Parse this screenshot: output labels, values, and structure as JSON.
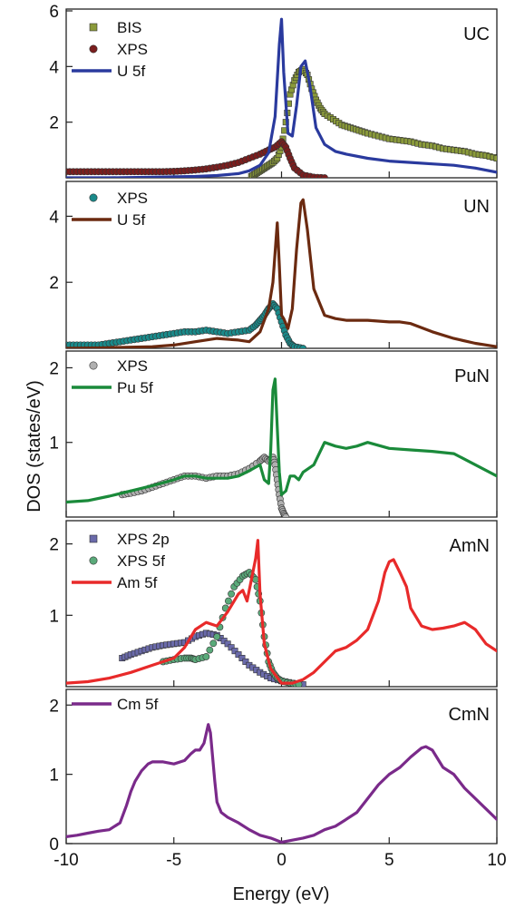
{
  "chart_data": [
    {
      "type": "line",
      "panel_label": "UC",
      "ylim": [
        0,
        6
      ],
      "yticks": [
        0,
        2,
        4,
        6
      ],
      "ytick_labels": [
        "",
        "2",
        "4",
        "6"
      ],
      "xlim": [
        -10,
        10
      ],
      "series": [
        {
          "name": "BIS",
          "kind": "scatter",
          "marker": "square",
          "color": "#8a9a3a",
          "x": [
            -1.4,
            -1.2,
            -1.0,
            -0.8,
            -0.6,
            -0.4,
            -0.2,
            0.0,
            0.2,
            0.4,
            0.6,
            0.8,
            1.0,
            1.2,
            1.4,
            1.6,
            1.8,
            2.0,
            2.4,
            2.8,
            3.2,
            3.6,
            4.0,
            4.5,
            5.0,
            5.5,
            6.0,
            6.5,
            7.0,
            7.5,
            8.0,
            8.5,
            9.0,
            9.5,
            10.0
          ],
          "y": [
            0.05,
            0.15,
            0.25,
            0.35,
            0.45,
            0.55,
            0.7,
            1.1,
            2.0,
            3.0,
            3.5,
            3.8,
            3.9,
            3.7,
            3.2,
            2.8,
            2.5,
            2.3,
            2.1,
            1.9,
            1.8,
            1.7,
            1.6,
            1.5,
            1.4,
            1.35,
            1.3,
            1.2,
            1.15,
            1.05,
            1.0,
            0.95,
            0.85,
            0.8,
            0.7
          ]
        },
        {
          "name": "XPS",
          "kind": "scatter",
          "marker": "circle",
          "color": "#7a1e1e",
          "x": [
            -10.0,
            -9.5,
            -9.0,
            -8.5,
            -8.0,
            -7.5,
            -7.0,
            -6.5,
            -6.0,
            -5.5,
            -5.0,
            -4.5,
            -4.0,
            -3.5,
            -3.0,
            -2.5,
            -2.0,
            -1.5,
            -1.0,
            -0.6,
            -0.3,
            0.0,
            0.2,
            0.4,
            0.6,
            1.0,
            1.5,
            2.0
          ],
          "y": [
            0.22,
            0.22,
            0.22,
            0.22,
            0.22,
            0.22,
            0.22,
            0.22,
            0.22,
            0.22,
            0.23,
            0.25,
            0.28,
            0.32,
            0.38,
            0.45,
            0.55,
            0.7,
            0.85,
            1.0,
            1.1,
            1.3,
            1.1,
            0.7,
            0.35,
            0.1,
            0.02,
            0.0
          ]
        },
        {
          "name": "U 5f",
          "kind": "line",
          "color": "#2a3a9e",
          "x": [
            -10.0,
            -8.0,
            -6.0,
            -4.0,
            -3.0,
            -2.0,
            -1.5,
            -1.0,
            -0.6,
            -0.3,
            -0.1,
            0.0,
            0.1,
            0.3,
            0.5,
            0.7,
            0.9,
            1.1,
            1.3,
            1.6,
            2.0,
            2.5,
            3.0,
            4.0,
            5.0,
            6.0,
            7.0,
            8.0,
            9.0,
            10.0
          ],
          "y": [
            0.0,
            0.0,
            0.02,
            0.05,
            0.08,
            0.15,
            0.25,
            0.45,
            0.9,
            2.2,
            4.8,
            5.7,
            3.8,
            1.6,
            1.5,
            2.6,
            4.0,
            4.2,
            3.4,
            1.8,
            1.2,
            0.95,
            0.85,
            0.7,
            0.6,
            0.55,
            0.5,
            0.45,
            0.35,
            0.2
          ]
        }
      ]
    },
    {
      "type": "line",
      "panel_label": "UN",
      "ylim": [
        0,
        5
      ],
      "yticks": [
        2,
        4
      ],
      "ytick_labels": [
        "2",
        "4"
      ],
      "xlim": [
        -10,
        10
      ],
      "series": [
        {
          "name": "XPS",
          "kind": "scatter",
          "marker": "circle",
          "color": "#1a8a8a",
          "x": [
            -10.0,
            -9.5,
            -9.0,
            -8.5,
            -8.0,
            -7.5,
            -7.0,
            -6.5,
            -6.0,
            -5.5,
            -5.0,
            -4.5,
            -4.0,
            -3.5,
            -3.0,
            -2.5,
            -2.0,
            -1.5,
            -1.2,
            -1.0,
            -0.8,
            -0.6,
            -0.4,
            -0.2,
            0.0,
            0.2,
            0.4,
            0.6,
            1.0
          ],
          "y": [
            0.1,
            0.1,
            0.1,
            0.1,
            0.15,
            0.2,
            0.25,
            0.3,
            0.35,
            0.4,
            0.45,
            0.5,
            0.5,
            0.55,
            0.5,
            0.45,
            0.5,
            0.55,
            0.7,
            0.85,
            1.0,
            1.2,
            1.35,
            1.2,
            0.8,
            0.4,
            0.15,
            0.05,
            0.0
          ]
        },
        {
          "name": "U 5f",
          "kind": "line",
          "color": "#6b2a10",
          "x": [
            -10.0,
            -8.0,
            -6.0,
            -5.0,
            -4.0,
            -3.0,
            -2.0,
            -1.5,
            -1.0,
            -0.6,
            -0.4,
            -0.2,
            -0.1,
            0.0,
            0.1,
            0.3,
            0.5,
            0.7,
            0.9,
            1.0,
            1.2,
            1.5,
            2.0,
            2.5,
            3.0,
            4.0,
            5.0,
            5.5,
            6.0,
            7.0,
            8.0,
            9.0,
            10.0
          ],
          "y": [
            0.0,
            0.02,
            0.05,
            0.1,
            0.2,
            0.3,
            0.25,
            0.2,
            0.5,
            1.2,
            2.0,
            3.8,
            2.5,
            1.0,
            0.9,
            0.6,
            1.2,
            3.0,
            4.4,
            4.5,
            3.6,
            1.8,
            1.0,
            0.9,
            0.85,
            0.85,
            0.8,
            0.8,
            0.75,
            0.5,
            0.3,
            0.15,
            0.05
          ]
        }
      ]
    },
    {
      "type": "line",
      "panel_label": "PuN",
      "ylim": [
        0,
        2.2
      ],
      "yticks": [
        1,
        2
      ],
      "ytick_labels": [
        "1",
        "2"
      ],
      "xlim": [
        -10,
        10
      ],
      "series": [
        {
          "name": "XPS",
          "kind": "scatter",
          "marker": "circle",
          "color": "#b0b0b0",
          "x": [
            -7.4,
            -7.0,
            -6.5,
            -6.0,
            -5.5,
            -5.0,
            -4.5,
            -4.0,
            -3.5,
            -3.0,
            -2.5,
            -2.0,
            -1.5,
            -1.0,
            -0.8,
            -0.6,
            -0.4,
            -0.3,
            -0.2,
            -0.1,
            0.0,
            0.1,
            0.2
          ],
          "y": [
            0.3,
            0.32,
            0.35,
            0.4,
            0.45,
            0.5,
            0.55,
            0.55,
            0.52,
            0.55,
            0.55,
            0.58,
            0.65,
            0.75,
            0.8,
            0.75,
            0.8,
            0.7,
            0.5,
            0.3,
            0.12,
            0.05,
            0.0
          ]
        },
        {
          "name": "Pu 5f",
          "kind": "line",
          "color": "#1a8a3a",
          "x": [
            -10.0,
            -9.0,
            -8.0,
            -7.0,
            -6.0,
            -5.0,
            -4.5,
            -4.0,
            -3.5,
            -3.0,
            -2.5,
            -2.0,
            -1.5,
            -1.0,
            -0.8,
            -0.6,
            -0.5,
            -0.4,
            -0.3,
            -0.2,
            -0.1,
            0.0,
            0.2,
            0.4,
            0.6,
            0.8,
            1.0,
            1.5,
            2.0,
            2.5,
            3.0,
            3.5,
            4.0,
            5.0,
            6.0,
            7.0,
            8.0,
            9.0,
            10.0
          ],
          "y": [
            0.2,
            0.22,
            0.28,
            0.35,
            0.42,
            0.5,
            0.55,
            0.55,
            0.52,
            0.52,
            0.52,
            0.55,
            0.62,
            0.7,
            0.5,
            0.45,
            0.9,
            1.7,
            1.85,
            1.2,
            0.6,
            0.3,
            0.35,
            0.55,
            0.55,
            0.5,
            0.6,
            0.7,
            1.0,
            0.95,
            0.92,
            0.95,
            1.0,
            0.92,
            0.9,
            0.88,
            0.85,
            0.7,
            0.55
          ]
        }
      ]
    },
    {
      "type": "line",
      "panel_label": "AmN",
      "ylim": [
        0,
        2.3
      ],
      "yticks": [
        1,
        2
      ],
      "ytick_labels": [
        "1",
        "2"
      ],
      "xlim": [
        -10,
        10
      ],
      "series": [
        {
          "name": "XPS 2p",
          "kind": "scatter",
          "marker": "square",
          "color": "#6a6aaa",
          "x": [
            -7.4,
            -7.0,
            -6.5,
            -6.0,
            -5.5,
            -5.0,
            -4.5,
            -4.0,
            -3.5,
            -3.0,
            -2.5,
            -2.0,
            -1.5,
            -1.0,
            -0.5,
            0.0,
            0.5,
            1.0
          ],
          "y": [
            0.4,
            0.45,
            0.5,
            0.55,
            0.58,
            0.6,
            0.62,
            0.7,
            0.75,
            0.72,
            0.6,
            0.45,
            0.3,
            0.2,
            0.12,
            0.08,
            0.05,
            0.03
          ]
        },
        {
          "name": "XPS 5f",
          "kind": "scatter",
          "marker": "circle",
          "color": "#5aaa7a",
          "x": [
            -5.5,
            -5.0,
            -4.5,
            -4.2,
            -4.0,
            -3.5,
            -3.0,
            -2.6,
            -2.2,
            -1.8,
            -1.5,
            -1.2,
            -1.0,
            -0.8,
            -0.6,
            -0.4,
            -0.2,
            0.0,
            0.4,
            0.8
          ],
          "y": [
            0.35,
            0.38,
            0.4,
            0.4,
            0.38,
            0.42,
            0.7,
            1.1,
            1.4,
            1.55,
            1.6,
            1.5,
            1.2,
            0.7,
            0.35,
            0.2,
            0.12,
            0.08,
            0.05,
            0.03
          ]
        },
        {
          "name": "Am 5f",
          "kind": "line",
          "color": "#e82a2a",
          "x": [
            -10.0,
            -9.0,
            -8.0,
            -7.0,
            -6.0,
            -5.0,
            -4.5,
            -4.0,
            -3.5,
            -3.0,
            -2.5,
            -2.0,
            -1.8,
            -1.6,
            -1.4,
            -1.2,
            -1.1,
            -1.0,
            -0.8,
            -0.5,
            0.0,
            0.5,
            1.0,
            1.5,
            2.0,
            2.5,
            3.0,
            3.5,
            4.0,
            4.5,
            4.8,
            5.0,
            5.2,
            5.5,
            5.8,
            6.0,
            6.5,
            7.0,
            7.5,
            8.0,
            8.5,
            9.0,
            9.5,
            10.0
          ],
          "y": [
            0.05,
            0.07,
            0.12,
            0.2,
            0.3,
            0.4,
            0.55,
            0.8,
            0.9,
            0.85,
            1.05,
            1.3,
            1.35,
            1.2,
            1.5,
            1.8,
            2.05,
            1.3,
            0.6,
            0.25,
            0.05,
            0.05,
            0.1,
            0.2,
            0.35,
            0.5,
            0.55,
            0.65,
            0.8,
            1.2,
            1.6,
            1.75,
            1.78,
            1.6,
            1.4,
            1.1,
            0.85,
            0.8,
            0.82,
            0.85,
            0.9,
            0.8,
            0.6,
            0.5
          ]
        }
      ]
    },
    {
      "type": "line",
      "panel_label": "CmN",
      "ylim": [
        0,
        2.2
      ],
      "yticks": [
        0,
        1,
        2
      ],
      "ytick_labels": [
        "0",
        "1",
        "2"
      ],
      "xlim": [
        -10,
        10
      ],
      "series": [
        {
          "name": "Cm 5f",
          "kind": "line",
          "color": "#7a2a8a",
          "x": [
            -10.0,
            -9.5,
            -9.0,
            -8.5,
            -8.0,
            -7.5,
            -7.2,
            -7.0,
            -6.8,
            -6.5,
            -6.2,
            -6.0,
            -5.5,
            -5.0,
            -4.5,
            -4.2,
            -4.0,
            -3.8,
            -3.6,
            -3.4,
            -3.3,
            -3.1,
            -3.0,
            -2.8,
            -2.5,
            -2.0,
            -1.5,
            -1.0,
            -0.5,
            0.0,
            0.5,
            1.0,
            1.5,
            2.0,
            2.5,
            3.0,
            3.5,
            4.0,
            4.5,
            5.0,
            5.5,
            6.0,
            6.5,
            6.7,
            7.0,
            7.3,
            7.5,
            8.0,
            8.5,
            9.0,
            9.5,
            10.0
          ],
          "y": [
            0.1,
            0.12,
            0.15,
            0.18,
            0.2,
            0.3,
            0.55,
            0.75,
            0.9,
            1.05,
            1.15,
            1.18,
            1.18,
            1.15,
            1.2,
            1.3,
            1.35,
            1.35,
            1.45,
            1.72,
            1.6,
            0.9,
            0.6,
            0.45,
            0.38,
            0.3,
            0.2,
            0.12,
            0.08,
            0.02,
            0.05,
            0.08,
            0.12,
            0.2,
            0.25,
            0.35,
            0.45,
            0.65,
            0.85,
            1.0,
            1.1,
            1.25,
            1.38,
            1.4,
            1.35,
            1.2,
            1.1,
            1.0,
            0.8,
            0.65,
            0.5,
            0.35
          ]
        }
      ]
    }
  ],
  "xlabel": "Energy (eV)",
  "ylabel": "DOS (states/eV)",
  "xticks": [
    -10,
    -5,
    0,
    5,
    10
  ],
  "xtick_labels": [
    "-10",
    "-5",
    "0",
    "5",
    "10"
  ]
}
